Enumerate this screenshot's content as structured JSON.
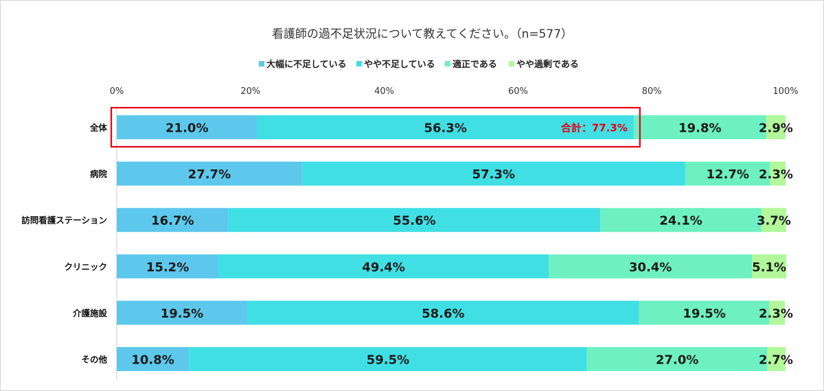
{
  "chart_data": {
    "type": "bar",
    "orientation": "horizontal",
    "stacked": true,
    "title": "看護師の過不足状況について教えてください。（n=577）",
    "categories": [
      "全体",
      "病院",
      "訪問看護ステーション",
      "クリニック",
      "介護施設",
      "その他"
    ],
    "xlim": [
      0,
      100
    ],
    "x_ticks": [
      "0%",
      "20%",
      "40%",
      "60%",
      "80%",
      "100%"
    ],
    "legend_position": "top-center",
    "series": [
      {
        "name": "大幅に不足している",
        "color": "#5ec8ec",
        "values": [
          21.0,
          27.7,
          16.7,
          15.2,
          19.5,
          10.8
        ],
        "labels": [
          "21.0%",
          "27.7%",
          "16.7%",
          "15.2%",
          "19.5%",
          "10.8%"
        ]
      },
      {
        "name": "やや不足している",
        "color": "#40dfe4",
        "values": [
          56.3,
          57.3,
          55.6,
          49.4,
          58.6,
          59.5
        ],
        "labels": [
          "56.3%",
          "57.3%",
          "55.6%",
          "49.4%",
          "58.6%",
          "59.5%"
        ]
      },
      {
        "name": "適正である",
        "color": "#6ef0c2",
        "values": [
          19.8,
          12.7,
          24.1,
          30.4,
          19.5,
          27.0
        ],
        "labels": [
          "19.8%",
          "12.7%",
          "24.1%",
          "30.4%",
          "19.5%",
          "27.0%"
        ]
      },
      {
        "name": "やや過剰である",
        "color": "#b2f79a",
        "values": [
          2.9,
          2.3,
          3.7,
          5.1,
          2.3,
          2.7
        ],
        "labels": [
          "2.9%",
          "2.3%",
          "3.7%",
          "5.1%",
          "2.3%",
          "2.7%"
        ]
      }
    ],
    "annotation": {
      "text": "合計：77.3%",
      "category": "全体",
      "value": 77.3,
      "color": "#e60012"
    }
  }
}
